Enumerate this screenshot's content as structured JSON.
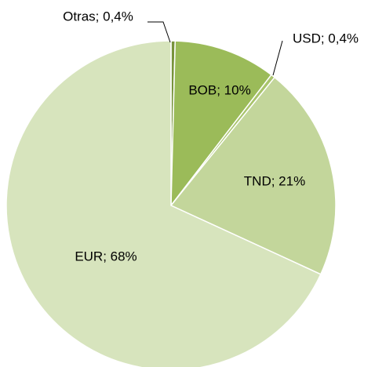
{
  "chart_data": {
    "type": "pie",
    "values": [
      0.4,
      10,
      0.4,
      21,
      68
    ],
    "value_labels": [
      "Otras; 0,4%",
      "BOB; 10%",
      "USD; 0,4%",
      "TND; 21%",
      "EUR; 68%"
    ],
    "colors": [
      "#77933c",
      "#9bbb59",
      "#a9c46c",
      "#c3d69b",
      "#d7e4bd"
    ]
  }
}
